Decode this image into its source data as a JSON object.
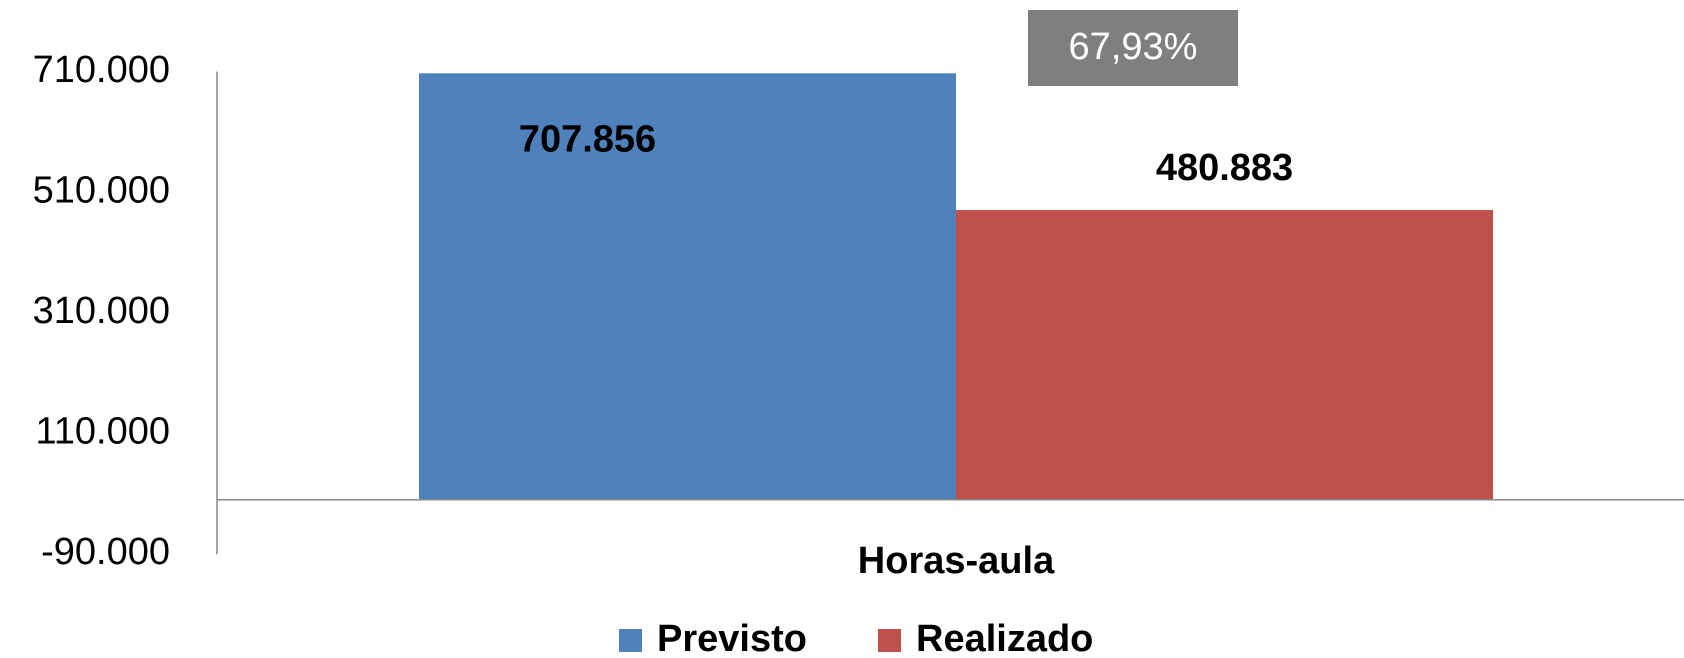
{
  "chart_data": {
    "type": "bar",
    "categories": [
      "Horas-aula"
    ],
    "series": [
      {
        "name": "Previsto",
        "color": "#4f81bd",
        "values": [
          707856
        ],
        "value_labels": [
          "707.856"
        ]
      },
      {
        "name": "Realizado",
        "color": "#c0504d",
        "values": [
          480883
        ],
        "value_labels": [
          "480.883"
        ]
      }
    ],
    "annotation": "67,93%",
    "ylim": [
      -90000,
      710000
    ],
    "yticks": [
      {
        "value": -90000,
        "label": "-90.000"
      },
      {
        "value": 110000,
        "label": "110.000"
      },
      {
        "value": 310000,
        "label": "310.000"
      },
      {
        "value": 510000,
        "label": "510.000"
      },
      {
        "value": 710000,
        "label": "710.000"
      }
    ],
    "grid": false
  }
}
